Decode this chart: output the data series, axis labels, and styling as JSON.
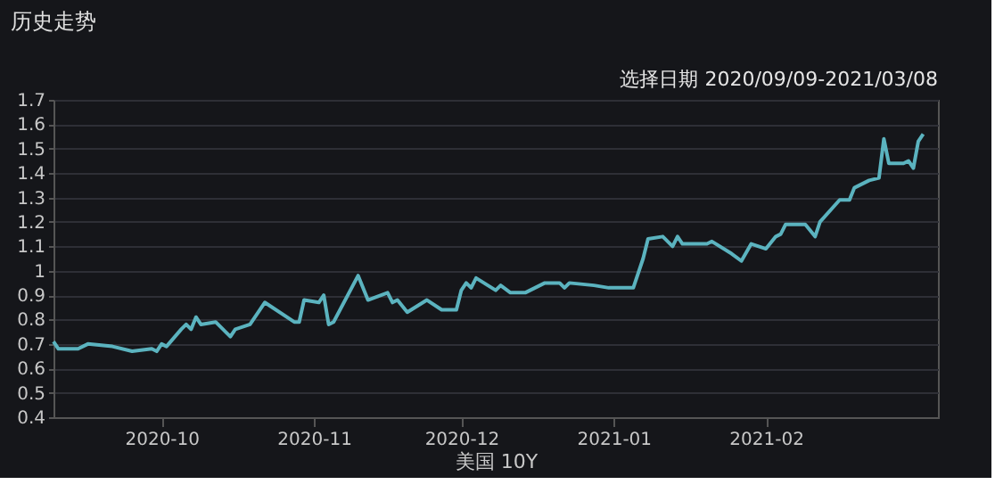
{
  "chart_data": {
    "type": "line",
    "title": "历史走势",
    "subtitle": "选择日期 2020/09/09-2021/03/08",
    "xlabel": "美国 10Y",
    "x": [
      "2020-09-09",
      "2020-09-10",
      "2020-09-14",
      "2020-09-16",
      "2020-09-21",
      "2020-09-25",
      "2020-09-29",
      "2020-09-30",
      "2020-10-01",
      "2020-10-02",
      "2020-10-05",
      "2020-10-06",
      "2020-10-07",
      "2020-10-08",
      "2020-10-09",
      "2020-10-12",
      "2020-10-15",
      "2020-10-16",
      "2020-10-19",
      "2020-10-22",
      "2020-10-28",
      "2020-10-29",
      "2020-10-30",
      "2020-11-02",
      "2020-11-03",
      "2020-11-04",
      "2020-11-05",
      "2020-11-10",
      "2020-11-12",
      "2020-11-16",
      "2020-11-17",
      "2020-11-18",
      "2020-11-20",
      "2020-11-24",
      "2020-11-27",
      "2020-11-30",
      "2020-12-01",
      "2020-12-02",
      "2020-12-03",
      "2020-12-04",
      "2020-12-08",
      "2020-12-09",
      "2020-12-11",
      "2020-12-14",
      "2020-12-16",
      "2020-12-18",
      "2020-12-21",
      "2020-12-22",
      "2020-12-23",
      "2020-12-28",
      "2020-12-31",
      "2021-01-05",
      "2021-01-07",
      "2021-01-08",
      "2021-01-11",
      "2021-01-13",
      "2021-01-14",
      "2021-01-15",
      "2021-01-20",
      "2021-01-21",
      "2021-01-25",
      "2021-01-27",
      "2021-01-29",
      "2021-02-01",
      "2021-02-03",
      "2021-02-04",
      "2021-02-05",
      "2021-02-09",
      "2021-02-11",
      "2021-02-12",
      "2021-02-16",
      "2021-02-18",
      "2021-02-19",
      "2021-02-22",
      "2021-02-24",
      "2021-02-25",
      "2021-02-26",
      "2021-03-01",
      "2021-03-02",
      "2021-03-03",
      "2021-03-04",
      "2021-03-05"
    ],
    "series": [
      {
        "color": "#5bb3bf",
        "values": [
          0.71,
          0.68,
          0.68,
          0.7,
          0.69,
          0.67,
          0.68,
          0.67,
          0.7,
          0.69,
          0.76,
          0.78,
          0.76,
          0.81,
          0.78,
          0.79,
          0.73,
          0.76,
          0.78,
          0.87,
          0.79,
          0.79,
          0.88,
          0.87,
          0.9,
          0.78,
          0.79,
          0.98,
          0.88,
          0.91,
          0.87,
          0.88,
          0.83,
          0.88,
          0.84,
          0.84,
          0.92,
          0.95,
          0.93,
          0.97,
          0.92,
          0.94,
          0.91,
          0.91,
          0.93,
          0.95,
          0.95,
          0.93,
          0.95,
          0.94,
          0.93,
          0.93,
          1.05,
          1.13,
          1.14,
          1.1,
          1.14,
          1.11,
          1.11,
          1.12,
          1.07,
          1.04,
          1.11,
          1.09,
          1.14,
          1.15,
          1.19,
          1.19,
          1.14,
          1.2,
          1.29,
          1.29,
          1.34,
          1.37,
          1.38,
          1.54,
          1.44,
          1.44,
          1.45,
          1.42,
          1.53,
          1.56
        ]
      }
    ],
    "xlim": [
      "2020-09-09",
      "2021-03-08"
    ],
    "xticks": [
      {
        "value": "2020-10-01",
        "label": "2020-10"
      },
      {
        "value": "2020-11-01",
        "label": "2020-11"
      },
      {
        "value": "2020-12-01",
        "label": "2020-12"
      },
      {
        "value": "2021-01-01",
        "label": "2021-01"
      },
      {
        "value": "2021-02-01",
        "label": "2021-02"
      }
    ],
    "ylim": [
      0.4,
      1.7
    ],
    "yticks": [
      0.4,
      0.5,
      0.6,
      0.7,
      0.8,
      0.9,
      1,
      1.1,
      1.2,
      1.3,
      1.4,
      1.5,
      1.6,
      1.7
    ],
    "grid": "y",
    "marker": "none",
    "line_style": "solid"
  }
}
